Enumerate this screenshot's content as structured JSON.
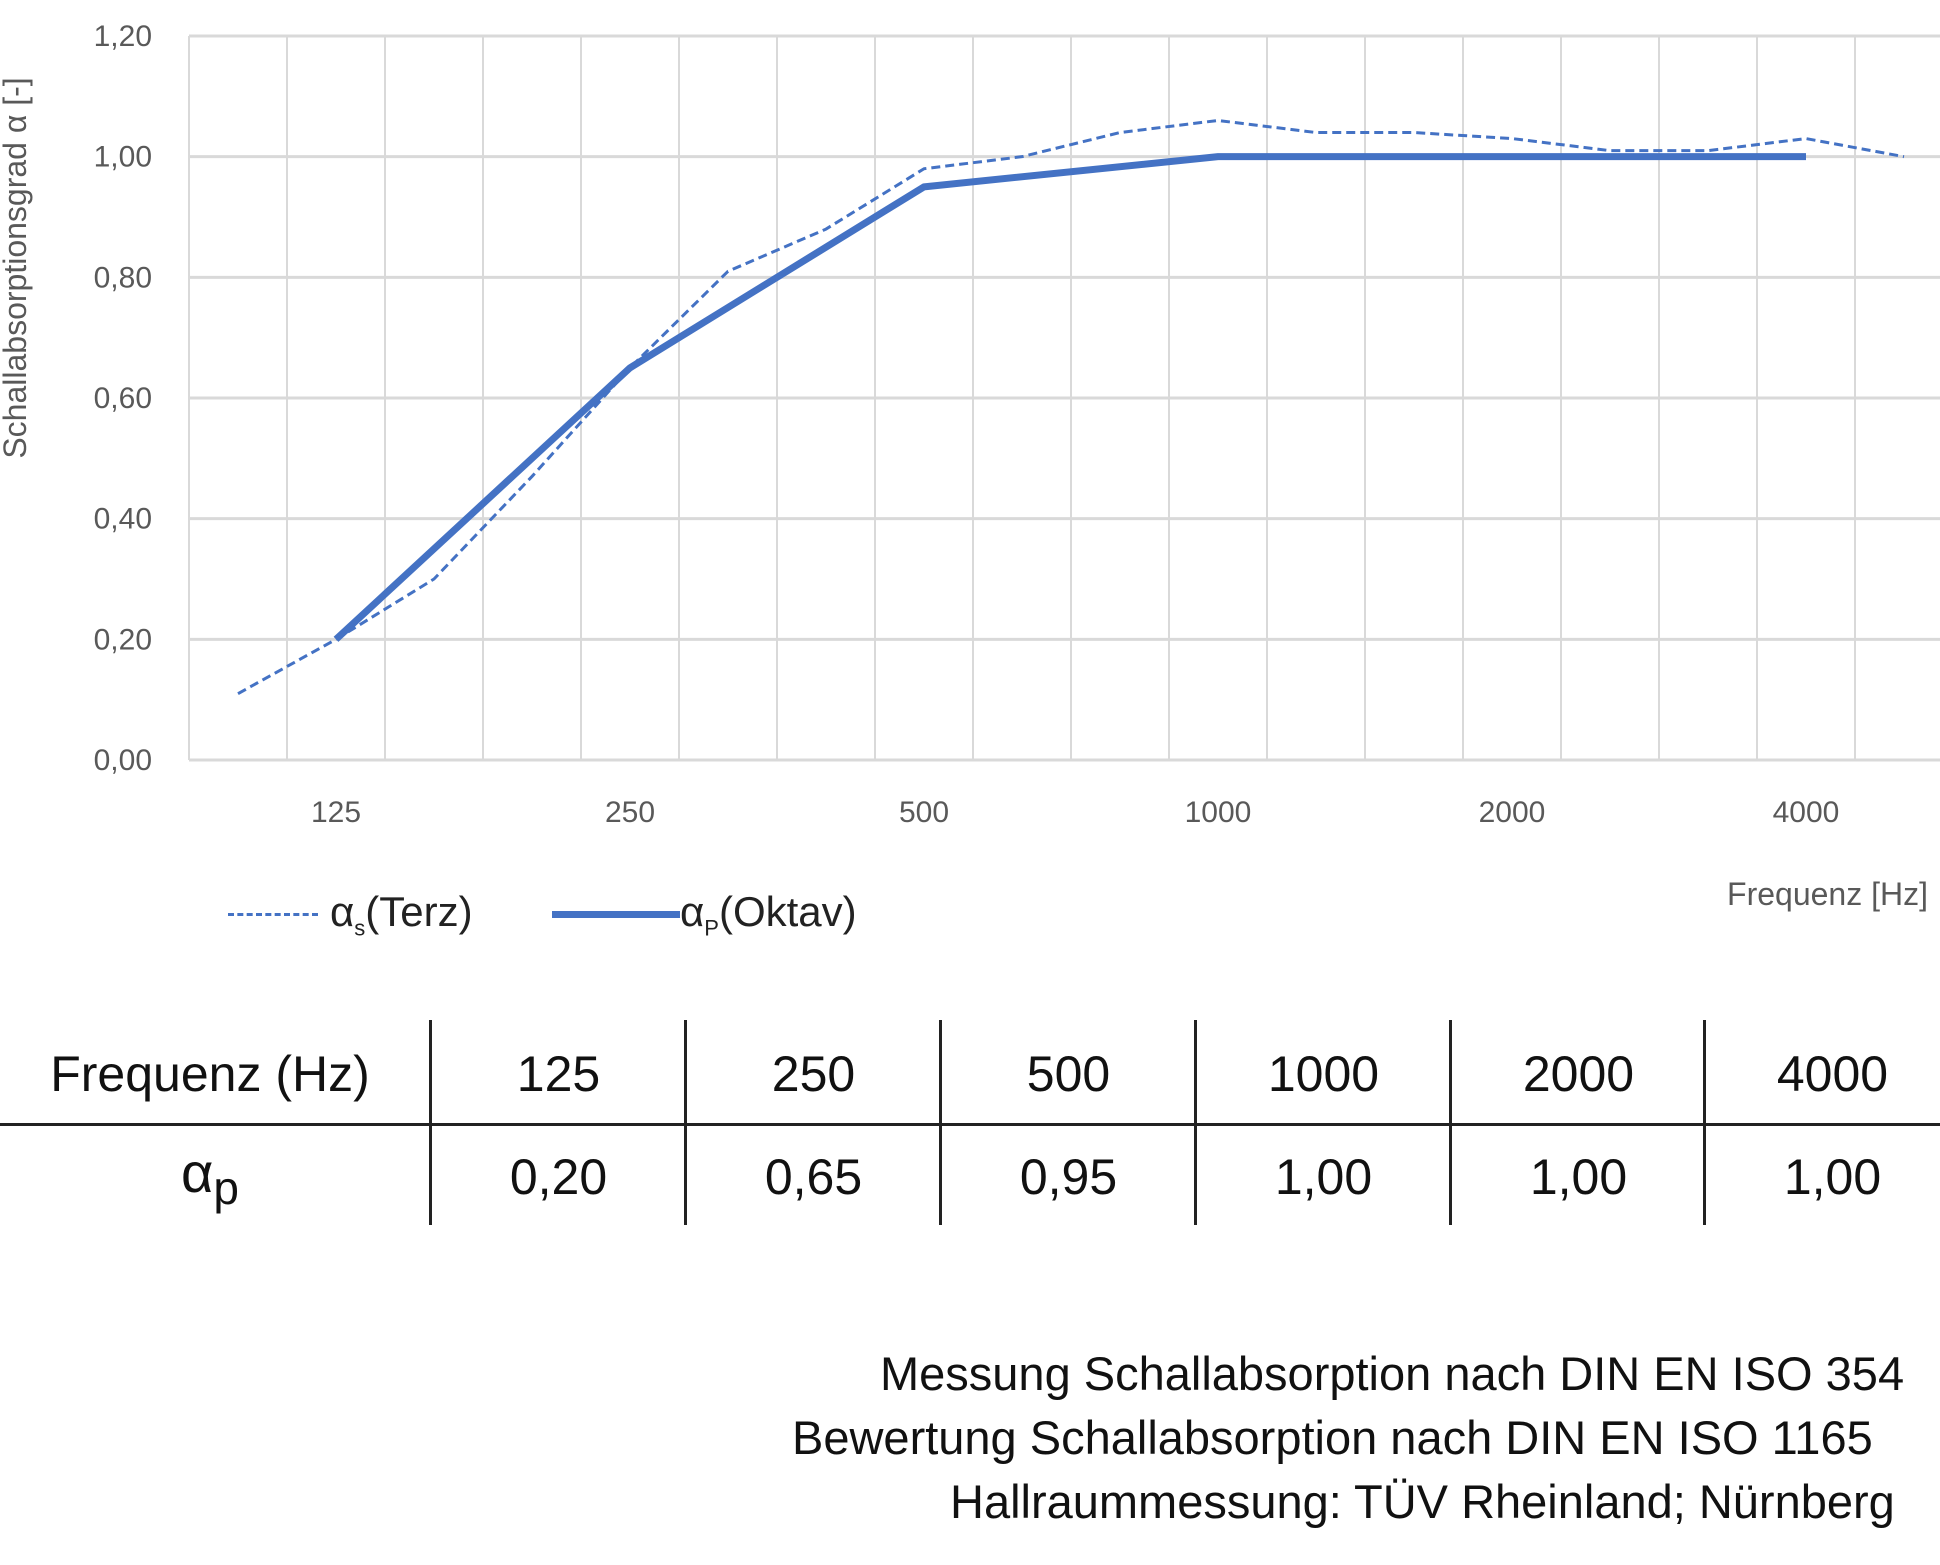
{
  "chart_data": {
    "type": "line",
    "ylabel": "Schallabsorptionsgrad α [-]",
    "xlabel": "Frequenz [Hz]",
    "ylim": [
      0,
      1.2
    ],
    "yticks": [
      "0,00",
      "0,20",
      "0,40",
      "0,60",
      "0,80",
      "1,00",
      "1,20"
    ],
    "grid": true,
    "x_bands": [
      "100",
      "125",
      "160",
      "200",
      "250",
      "315",
      "400",
      "500",
      "630",
      "800",
      "1000",
      "1250",
      "1600",
      "2000",
      "2500",
      "3150",
      "4000",
      "5000"
    ],
    "xtick_labels": [
      "125",
      "250",
      "500",
      "1000",
      "2000",
      "4000"
    ],
    "legend_position": "bottom-left",
    "series": [
      {
        "name": "αs (Terz)",
        "style": "dashed",
        "color": "#4472C4",
        "x": [
          "100",
          "125",
          "160",
          "200",
          "250",
          "315",
          "400",
          "500",
          "630",
          "800",
          "1000",
          "1250",
          "1600",
          "2000",
          "2500",
          "3150",
          "4000",
          "5000"
        ],
        "values": [
          0.11,
          0.2,
          0.3,
          0.47,
          0.65,
          0.81,
          0.88,
          0.98,
          1.0,
          1.04,
          1.06,
          1.04,
          1.04,
          1.03,
          1.01,
          1.01,
          1.03,
          1.0
        ]
      },
      {
        "name": "αp (Oktav)",
        "style": "solid",
        "color": "#4472C4",
        "x": [
          "125",
          "250",
          "500",
          "1000",
          "2000",
          "4000"
        ],
        "values": [
          0.2,
          0.65,
          0.95,
          1.0,
          1.0,
          1.0
        ]
      }
    ]
  },
  "legend": {
    "terz": {
      "symbol": "α",
      "sub": "s",
      "label": "(Terz)"
    },
    "oktav": {
      "symbol": "α",
      "sub": "P",
      "label": "(Oktav)"
    }
  },
  "table": {
    "header_label": "Frequenz (Hz)",
    "row_label_symbol": "α",
    "row_label_sub": "p",
    "frequencies": [
      "125",
      "250",
      "500",
      "1000",
      "2000",
      "4000"
    ],
    "values": [
      "0,20",
      "0,65",
      "0,95",
      "1,00",
      "1,00",
      "1,00"
    ]
  },
  "notes": [
    "Messung Schallabsorption nach DIN EN ISO 354",
    "Bewertung Schallabsorption nach DIN EN ISO 1165",
    "Hallraummessung: TÜV Rheinland; Nürnberg"
  ]
}
